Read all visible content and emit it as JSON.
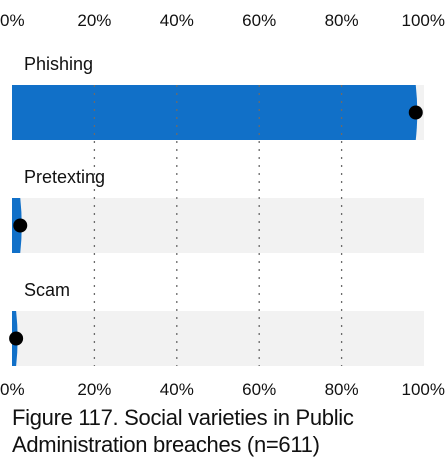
{
  "chart_data": {
    "type": "bar",
    "orientation": "horizontal",
    "categories": [
      "Phishing",
      "Pretexting",
      "Scam"
    ],
    "values": [
      98,
      2,
      1
    ],
    "xlim": [
      0,
      100
    ],
    "x_ticks": [
      "0%",
      "20%",
      "40%",
      "60%",
      "80%",
      "100%"
    ],
    "grid": "vertical dotted",
    "bar_color": "#1170c8",
    "track_color": "#f2f2f2",
    "marker_color": "#000000",
    "caption": "Figure 117. Social varieties in Public Administration breaches (n=611)"
  }
}
